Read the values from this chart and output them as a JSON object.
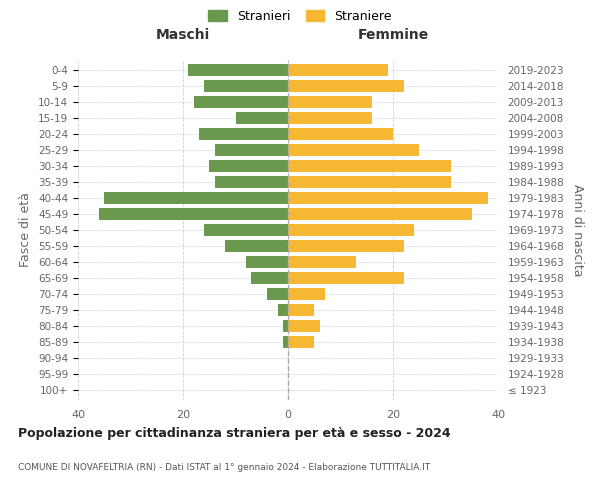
{
  "age_groups": [
    "100+",
    "95-99",
    "90-94",
    "85-89",
    "80-84",
    "75-79",
    "70-74",
    "65-69",
    "60-64",
    "55-59",
    "50-54",
    "45-49",
    "40-44",
    "35-39",
    "30-34",
    "25-29",
    "20-24",
    "15-19",
    "10-14",
    "5-9",
    "0-4"
  ],
  "birth_years": [
    "≤ 1923",
    "1924-1928",
    "1929-1933",
    "1934-1938",
    "1939-1943",
    "1944-1948",
    "1949-1953",
    "1954-1958",
    "1959-1963",
    "1964-1968",
    "1969-1973",
    "1974-1978",
    "1979-1983",
    "1984-1988",
    "1989-1993",
    "1994-1998",
    "1999-2003",
    "2004-2008",
    "2009-2013",
    "2014-2018",
    "2019-2023"
  ],
  "maschi": [
    0,
    0,
    0,
    1,
    1,
    2,
    4,
    7,
    8,
    12,
    16,
    36,
    35,
    14,
    15,
    14,
    17,
    10,
    18,
    16,
    19
  ],
  "femmine": [
    0,
    0,
    0,
    5,
    6,
    5,
    7,
    22,
    13,
    22,
    24,
    35,
    38,
    31,
    31,
    25,
    20,
    16,
    16,
    22,
    19
  ],
  "color_maschi": "#6a994e",
  "color_femmine": "#f6b833",
  "title": "Popolazione per cittadinanza straniera per età e sesso - 2024",
  "subtitle": "COMUNE DI NOVAFELTRIA (RN) - Dati ISTAT al 1° gennaio 2024 - Elaborazione TUTTITALIA.IT",
  "xlabel_left": "Maschi",
  "xlabel_right": "Femmine",
  "ylabel_left": "Fasce di età",
  "ylabel_right": "Anni di nascita",
  "xlim": 40,
  "legend_labels": [
    "Stranieri",
    "Straniere"
  ],
  "background_color": "#ffffff",
  "grid_color": "#d0d0d0"
}
